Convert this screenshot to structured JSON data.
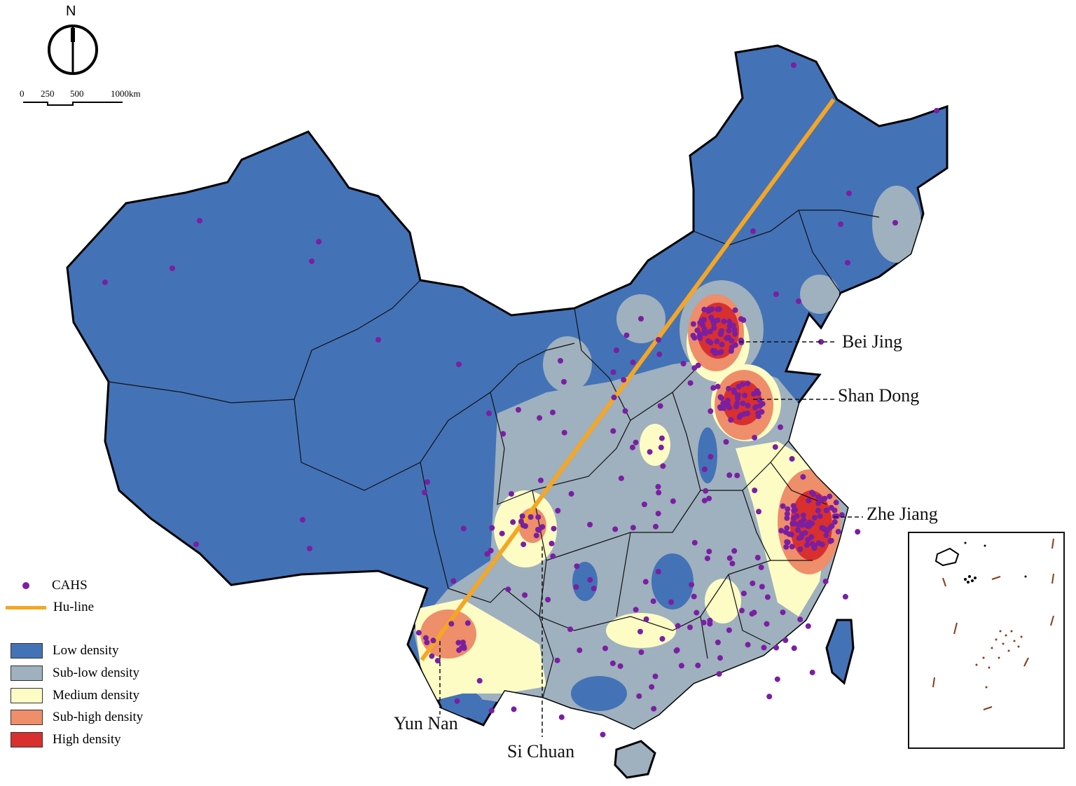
{
  "north_arrow": {
    "letter": "N"
  },
  "scale_bar": {
    "labels": [
      "0",
      "250",
      "500",
      "1000km"
    ]
  },
  "callouts": {
    "bei_jing": "Bei Jing",
    "shan_dong": "Shan Dong",
    "zhe_jiang": "Zhe Jiang",
    "yun_nan": "Yun Nan",
    "si_chuan": "Si Chuan"
  },
  "legend": {
    "cahs": {
      "label": "CAHS",
      "color": "#7a1fa2"
    },
    "hu_line": {
      "label": "Hu-line",
      "color": "#f5a623"
    },
    "classes": [
      {
        "label": "Low density",
        "color": "#4472b6"
      },
      {
        "label": "Sub-low density",
        "color": "#9fb0be"
      },
      {
        "label": "Medium density",
        "color": "#fdfcc5"
      },
      {
        "label": "Sub-high density",
        "color": "#ee8e6a"
      },
      {
        "label": "High density",
        "color": "#d8302e"
      }
    ]
  }
}
